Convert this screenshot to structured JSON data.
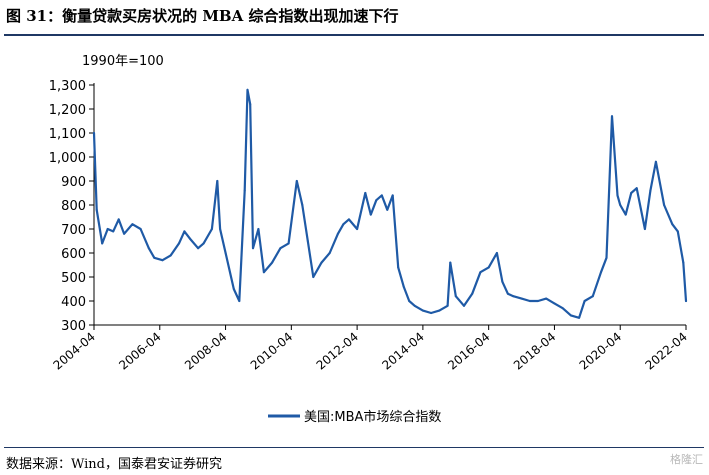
{
  "title": "图 31：衡量贷款买房状况的 MBA 综合指数出现加速下行",
  "source": "数据来源：Wind，国泰君安证券研究",
  "watermark": "格隆汇",
  "colors": {
    "series": "#1f5aa6",
    "rule": "#1f3864",
    "axis": "#000000"
  },
  "chart_data": {
    "type": "line",
    "unit_label": "1990年=100",
    "ylim": [
      300,
      1300
    ],
    "yticks": [
      300,
      400,
      500,
      600,
      700,
      800,
      900,
      1000,
      1100,
      1200,
      1300
    ],
    "ytick_labels": [
      "300",
      "400",
      "500",
      "600",
      "700",
      "800",
      "900",
      "1,000",
      "1,100",
      "1,200",
      "1,300"
    ],
    "xlim": [
      "2004-04",
      "2022-04"
    ],
    "xticks": [
      "2004-04",
      "2006-04",
      "2008-04",
      "2010-04",
      "2012-04",
      "2014-04",
      "2016-04",
      "2018-04",
      "2020-04",
      "2022-04"
    ],
    "grid": false,
    "legend_position": "bottom",
    "series": [
      {
        "name": "美国:MBA市场综合指数",
        "color": "#1f5aa6",
        "x": [
          "2004-04",
          "2004-05",
          "2004-07",
          "2004-09",
          "2004-11",
          "2005-01",
          "2005-03",
          "2005-06",
          "2005-09",
          "2005-12",
          "2006-02",
          "2006-05",
          "2006-08",
          "2006-11",
          "2007-01",
          "2007-03",
          "2007-06",
          "2007-08",
          "2007-11",
          "2008-01",
          "2008-02",
          "2008-04",
          "2008-07",
          "2008-09",
          "2008-11",
          "2008-12",
          "2009-01",
          "2009-02",
          "2009-04",
          "2009-06",
          "2009-09",
          "2009-12",
          "2010-03",
          "2010-06",
          "2010-08",
          "2010-10",
          "2010-12",
          "2011-03",
          "2011-06",
          "2011-09",
          "2011-11",
          "2012-01",
          "2012-04",
          "2012-07",
          "2012-09",
          "2012-11",
          "2013-01",
          "2013-03",
          "2013-05",
          "2013-07",
          "2013-09",
          "2013-11",
          "2014-01",
          "2014-04",
          "2014-07",
          "2014-10",
          "2015-01",
          "2015-02",
          "2015-04",
          "2015-07",
          "2015-10",
          "2016-01",
          "2016-04",
          "2016-07",
          "2016-09",
          "2016-11",
          "2017-01",
          "2017-04",
          "2017-07",
          "2017-10",
          "2018-01",
          "2018-04",
          "2018-07",
          "2018-10",
          "2019-01",
          "2019-03",
          "2019-06",
          "2019-09",
          "2019-11",
          "2020-01",
          "2020-03",
          "2020-04",
          "2020-06",
          "2020-08",
          "2020-10",
          "2021-01",
          "2021-03",
          "2021-05",
          "2021-08",
          "2021-11",
          "2022-01",
          "2022-03",
          "2022-04"
        ],
        "values": [
          1100,
          780,
          640,
          700,
          690,
          740,
          680,
          720,
          700,
          620,
          580,
          570,
          590,
          640,
          690,
          660,
          620,
          640,
          700,
          900,
          700,
          600,
          450,
          400,
          860,
          1280,
          1220,
          620,
          700,
          520,
          560,
          620,
          640,
          900,
          800,
          650,
          500,
          560,
          600,
          680,
          720,
          740,
          700,
          850,
          760,
          820,
          840,
          780,
          840,
          540,
          460,
          400,
          380,
          360,
          350,
          360,
          380,
          560,
          420,
          380,
          430,
          520,
          540,
          600,
          480,
          430,
          420,
          410,
          400,
          400,
          410,
          390,
          370,
          340,
          330,
          400,
          420,
          520,
          580,
          1170,
          840,
          800,
          760,
          850,
          870,
          700,
          860,
          980,
          800,
          720,
          690,
          560,
          400
        ]
      }
    ]
  }
}
